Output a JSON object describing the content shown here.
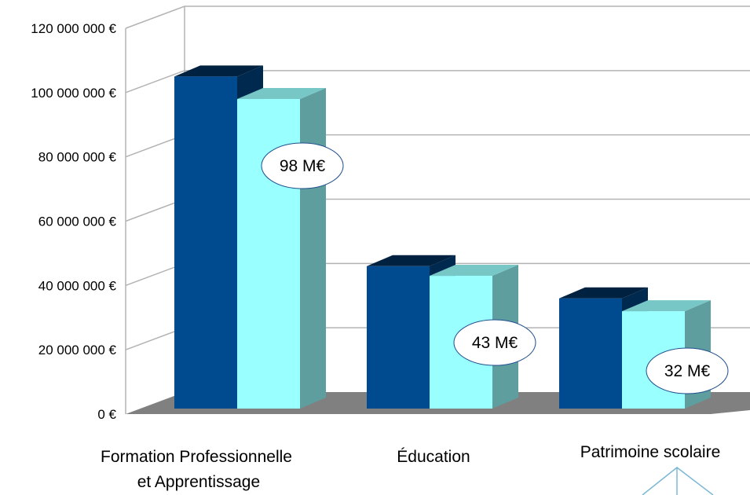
{
  "chart_data": {
    "type": "bar",
    "categories": [
      "Formation Professionnelle\n et Apprentissage",
      "Éducation",
      "Patrimoine scolaire"
    ],
    "series": [
      {
        "values": [
          105000000,
          46000000,
          36000000
        ],
        "color": "#004a8f"
      },
      {
        "values": [
          98000000,
          43000000,
          32000000
        ],
        "color": "#99ffff",
        "data_labels": [
          "98 M€",
          "43 M€",
          "32 M€"
        ]
      }
    ],
    "yticks": [
      "0 €",
      "20 000 000 €",
      "40 000 000 €",
      "60 000 000 €",
      "80 000 000 €",
      "100 000 000 €",
      "120 000 000 €"
    ],
    "ylim": [
      0,
      120000000
    ],
    "grid": true,
    "legend": "none",
    "style": "3d",
    "floor_color": "#808080",
    "wall_color": "#b3b3b3"
  }
}
